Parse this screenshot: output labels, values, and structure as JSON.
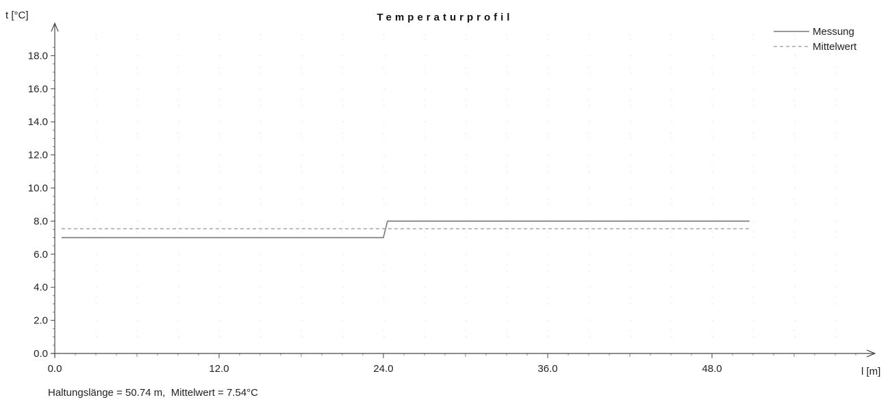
{
  "chart_data": {
    "type": "line",
    "title": "Temperaturprofil",
    "ylabel": "t [°C]",
    "xlabel": "l [m]",
    "xlim": [
      0,
      50.74
    ],
    "ylim": [
      0,
      20
    ],
    "x_ticks": [
      0,
      12,
      24,
      36,
      48
    ],
    "x_tick_labels": [
      "0.0",
      "12.0",
      "24.0",
      "36.0",
      "48.0"
    ],
    "y_ticks": [
      0,
      2,
      4,
      6,
      8,
      10,
      12,
      14,
      16,
      18
    ],
    "y_tick_labels": [
      "0.0",
      "2.0",
      "4.0",
      "6.0",
      "8.0",
      "10.0",
      "12.0",
      "14.0",
      "16.0",
      "18.0"
    ],
    "grid": true,
    "legend_position": "top-right",
    "series": [
      {
        "name": "Messung",
        "style": "solid",
        "color": "#777777",
        "x": [
          0.5,
          24.0,
          24.3,
          50.74
        ],
        "y": [
          7.0,
          7.0,
          8.0,
          8.0
        ]
      },
      {
        "name": "Mittelwert",
        "style": "dashed",
        "color": "#aaaaaa",
        "x": [
          0.5,
          50.74
        ],
        "y": [
          7.54,
          7.54
        ]
      }
    ],
    "footer": "Haltungslänge = 50.74 m,  Mittelwert = 7.54°C"
  }
}
